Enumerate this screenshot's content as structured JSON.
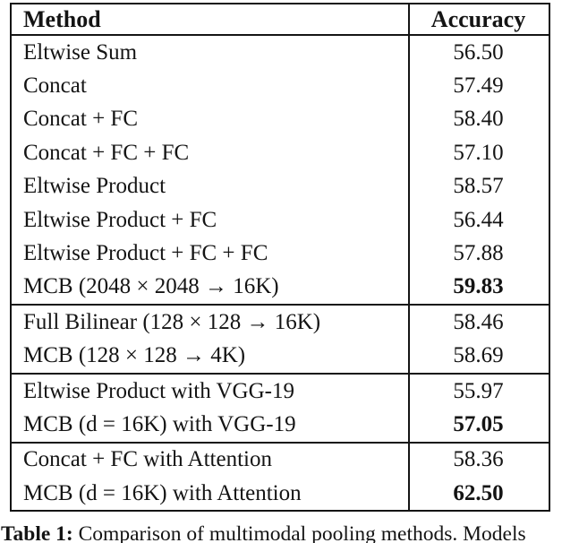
{
  "table": {
    "columns": [
      "Method",
      "Accuracy"
    ],
    "groups": [
      {
        "rows": [
          {
            "method": "Eltwise Sum",
            "accuracy": "56.50",
            "bold": false
          },
          {
            "method": "Concat",
            "accuracy": "57.49",
            "bold": false
          },
          {
            "method": "Concat + FC",
            "accuracy": "58.40",
            "bold": false
          },
          {
            "method": "Concat + FC + FC",
            "accuracy": "57.10",
            "bold": false
          },
          {
            "method": "Eltwise Product",
            "accuracy": "58.57",
            "bold": false
          },
          {
            "method": "Eltwise Product + FC",
            "accuracy": "56.44",
            "bold": false
          },
          {
            "method": "Eltwise Product + FC + FC",
            "accuracy": "57.88",
            "bold": false
          },
          {
            "method": "MCB (2048 × 2048 → 16K)",
            "accuracy": "59.83",
            "bold": true
          }
        ]
      },
      {
        "rows": [
          {
            "method": "Full Bilinear (128 × 128 → 16K)",
            "accuracy": "58.46",
            "bold": false
          },
          {
            "method": "MCB (128 × 128 → 4K)",
            "accuracy": "58.69",
            "bold": false
          }
        ]
      },
      {
        "rows": [
          {
            "method": "Eltwise Product with VGG-19",
            "accuracy": "55.97",
            "bold": false
          },
          {
            "method": "MCB (d = 16K) with VGG-19",
            "accuracy": "57.05",
            "bold": true
          }
        ]
      },
      {
        "rows": [
          {
            "method": "Concat + FC with Attention",
            "accuracy": "58.36",
            "bold": false
          },
          {
            "method": "MCB (d = 16K) with Attention",
            "accuracy": "62.50",
            "bold": true
          }
        ]
      }
    ]
  },
  "caption": {
    "label": "Table 1:",
    "text": " Comparison of multimodal pooling methods. Models"
  }
}
